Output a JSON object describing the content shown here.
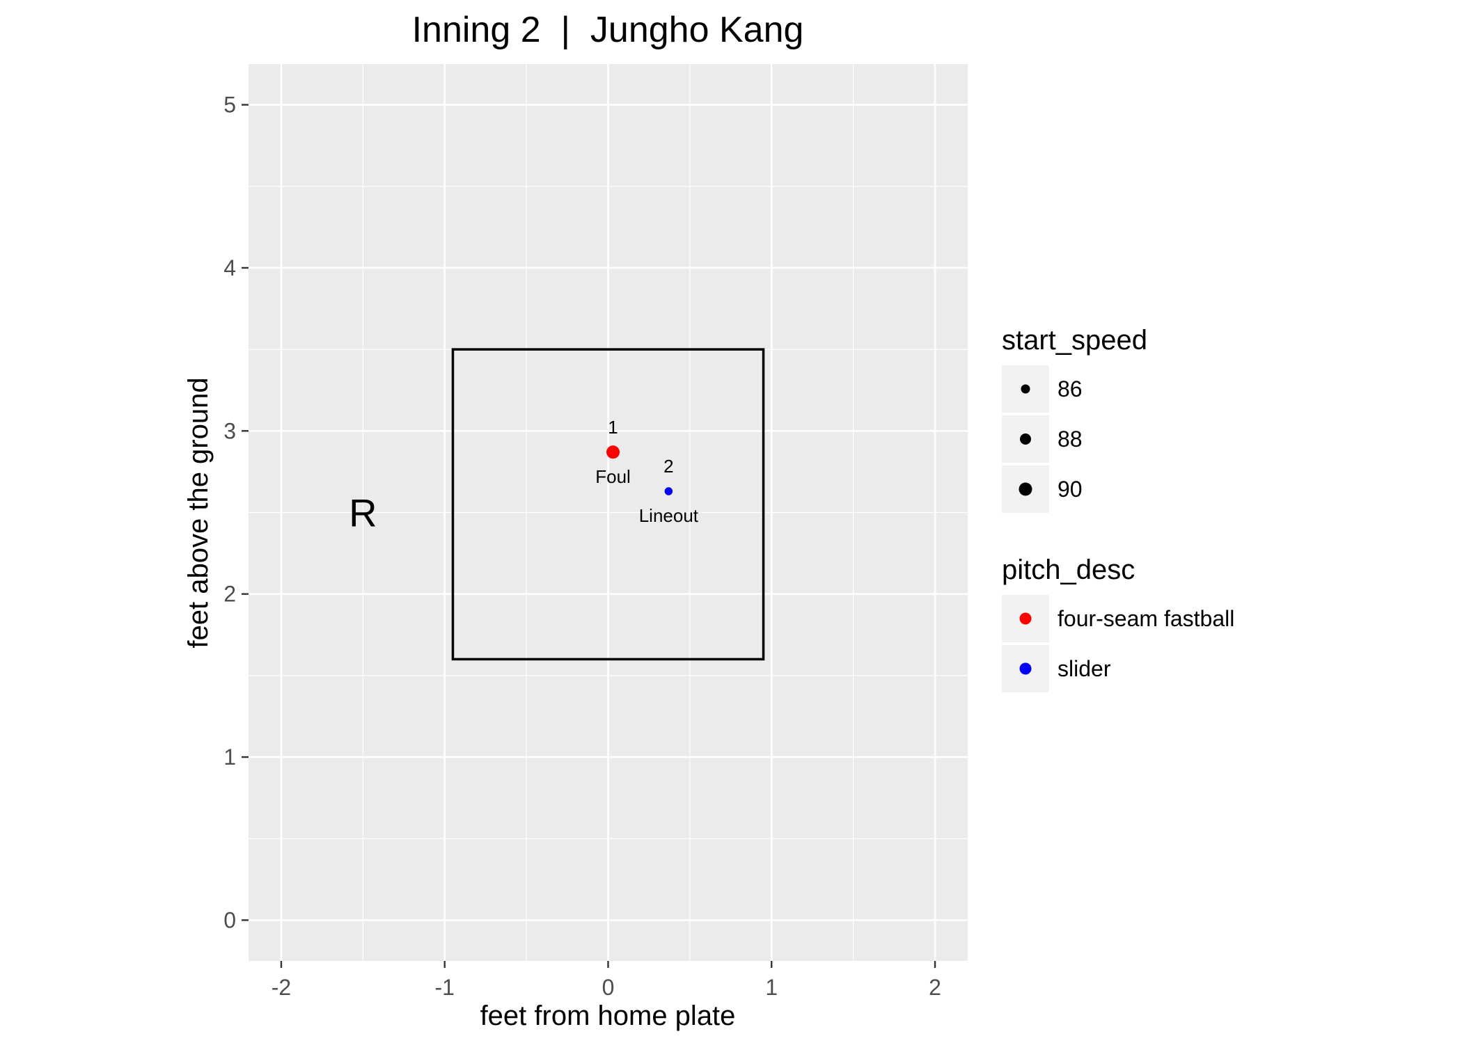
{
  "chart_data": {
    "type": "scatter",
    "title": "Inning 2  |  Jungho Kang",
    "xlabel": "feet from home plate",
    "ylabel": "feet above the ground",
    "xlim": [
      -2.2,
      2.2
    ],
    "ylim": [
      -0.25,
      5.25
    ],
    "x_ticks": [
      -2,
      -1,
      0,
      1,
      2
    ],
    "x_tick_labels": [
      "-2",
      "-1",
      "0",
      "1",
      "2"
    ],
    "y_ticks": [
      0,
      1,
      2,
      3,
      4,
      5
    ],
    "y_tick_labels": [
      "0",
      "1",
      "2",
      "3",
      "4",
      "5"
    ],
    "grid": true,
    "panel_background": "#EBEBEB",
    "strike_zone": {
      "x0": -0.95,
      "x1": 0.95,
      "y0": 1.6,
      "y1": 3.5
    },
    "batter_stand": {
      "label": "R",
      "x": -1.5,
      "y": 2.5
    },
    "points": [
      {
        "number": "1",
        "x": 0.03,
        "y": 2.87,
        "pitch_desc": "four-seam fastball",
        "start_speed": 90,
        "outcome": "Foul"
      },
      {
        "number": "2",
        "x": 0.37,
        "y": 2.63,
        "pitch_desc": "slider",
        "start_speed": 85,
        "outcome": "Lineout"
      }
    ],
    "legend_position": "right",
    "legends": {
      "size": {
        "title": "start_speed",
        "entries": [
          {
            "label": "86",
            "value": 86
          },
          {
            "label": "88",
            "value": 88
          },
          {
            "label": "90",
            "value": 90
          }
        ]
      },
      "color": {
        "title": "pitch_desc",
        "entries": [
          {
            "label": "four-seam fastball",
            "color": "#FF0000"
          },
          {
            "label": "slider",
            "color": "#0000FF"
          }
        ]
      }
    }
  }
}
